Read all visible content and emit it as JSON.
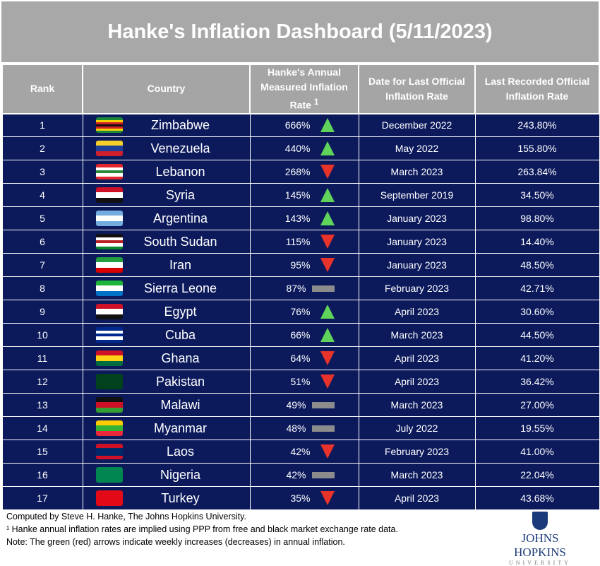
{
  "title": "Hanke's Inflation Dashboard (5/11/2023)",
  "headers": {
    "rank": "Rank",
    "country": "Country",
    "hanke": "Hanke's Annual Measured Inflation Rate",
    "hanke_sup": "1",
    "date": "Date for Last Official Inflation Rate",
    "official": "Last Recorded Official Inflation Rate"
  },
  "colors": {
    "up": "#5fd35a",
    "down": "#e8332a",
    "flat": "#8c8c8c",
    "row": "#0c1a5c"
  },
  "rows": [
    {
      "rank": "1",
      "country": "Zimbabwe",
      "hanke": "666%",
      "trend": "up",
      "date": "December 2022",
      "official": "243.80%",
      "flag": [
        "#1a8a3a",
        "#f5d100",
        "#d21f26",
        "#111",
        "#d21f26",
        "#f5d100",
        "#1a8a3a"
      ]
    },
    {
      "rank": "2",
      "country": "Venezuela",
      "hanke": "440%",
      "trend": "up",
      "date": "May 2022",
      "official": "155.80%",
      "flag": [
        "#f7cf2a",
        "#1e3f96",
        "#cf1e2c"
      ]
    },
    {
      "rank": "3",
      "country": "Lebanon",
      "hanke": "268%",
      "trend": "down",
      "date": "March 2023",
      "official": "263.84%",
      "flag": [
        "#e3262b",
        "#fff",
        "#2a8a3a",
        "#fff",
        "#e3262b"
      ]
    },
    {
      "rank": "4",
      "country": "Syria",
      "hanke": "145%",
      "trend": "up",
      "date": "September 2019",
      "official": "34.50%",
      "flag": [
        "#ce1126",
        "#fff",
        "#111"
      ]
    },
    {
      "rank": "5",
      "country": "Argentina",
      "hanke": "143%",
      "trend": "up",
      "date": "January 2023",
      "official": "98.80%",
      "flag": [
        "#74acdf",
        "#fff",
        "#74acdf"
      ]
    },
    {
      "rank": "6",
      "country": "South Sudan",
      "hanke": "115%",
      "trend": "down",
      "date": "January 2023",
      "official": "14.40%",
      "flag": [
        "#111",
        "#fff",
        "#b22",
        "#fff",
        "#078930"
      ]
    },
    {
      "rank": "7",
      "country": "Iran",
      "hanke": "95%",
      "trend": "down",
      "date": "January 2023",
      "official": "48.50%",
      "flag": [
        "#239f40",
        "#fff",
        "#da0000"
      ]
    },
    {
      "rank": "8",
      "country": "Sierra Leone",
      "hanke": "87%",
      "trend": "flat",
      "date": "February 2023",
      "official": "42.71%",
      "flag": [
        "#1eb53a",
        "#fff",
        "#0072c6"
      ]
    },
    {
      "rank": "9",
      "country": "Egypt",
      "hanke": "76%",
      "trend": "up",
      "date": "April 2023",
      "official": "30.60%",
      "flag": [
        "#ce1126",
        "#fff",
        "#111"
      ]
    },
    {
      "rank": "10",
      "country": "Cuba",
      "hanke": "66%",
      "trend": "up",
      "date": "March 2023",
      "official": "44.50%",
      "flag": [
        "#002a8f",
        "#fff",
        "#002a8f",
        "#fff",
        "#002a8f"
      ]
    },
    {
      "rank": "11",
      "country": "Ghana",
      "hanke": "64%",
      "trend": "down",
      "date": "April 2023",
      "official": "41.20%",
      "flag": [
        "#ce1126",
        "#fcd116",
        "#006b3f"
      ]
    },
    {
      "rank": "12",
      "country": "Pakistan",
      "hanke": "51%",
      "trend": "down",
      "date": "April 2023",
      "official": "36.42%",
      "flag": [
        "#01411c"
      ]
    },
    {
      "rank": "13",
      "country": "Malawi",
      "hanke": "49%",
      "trend": "flat",
      "date": "March 2023",
      "official": "27.00%",
      "flag": [
        "#111",
        "#ce1126",
        "#339e35"
      ]
    },
    {
      "rank": "14",
      "country": "Myanmar",
      "hanke": "48%",
      "trend": "flat",
      "date": "July 2022",
      "official": "19.55%",
      "flag": [
        "#fecb00",
        "#34b233",
        "#ea2839"
      ]
    },
    {
      "rank": "15",
      "country": "Laos",
      "hanke": "42%",
      "trend": "down",
      "date": "February 2023",
      "official": "41.00%",
      "flag": [
        "#ce1126",
        "#002868",
        "#002868",
        "#ce1126"
      ]
    },
    {
      "rank": "16",
      "country": "Nigeria",
      "hanke": "42%",
      "trend": "flat",
      "date": "March 2023",
      "official": "22.04%",
      "flag": [
        "#008751"
      ]
    },
    {
      "rank": "17",
      "country": "Turkey",
      "hanke": "35%",
      "trend": "down",
      "date": "April 2023",
      "official": "43.68%",
      "flag": [
        "#e30a17"
      ]
    }
  ],
  "footer": {
    "line1": "Computed by Steve H. Hanke, The Johns Hopkins University.",
    "line2": "¹ Hanke annual inflation rates are implied using PPP from free and black market exchange rate data.",
    "line3": "Note: The green (red) arrows indicate weekly increases (decreases) in annual inflation."
  },
  "logo": {
    "name": "Johns Hopkins",
    "sub": "UNIVERSITY"
  }
}
